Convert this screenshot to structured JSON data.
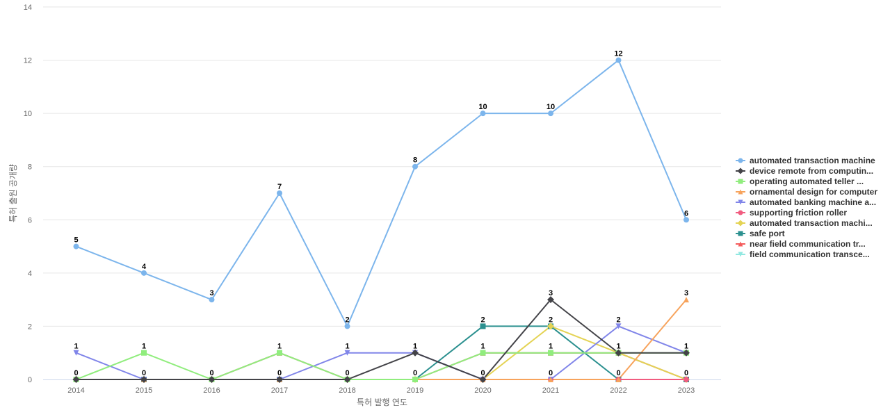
{
  "chart_data": {
    "type": "line",
    "title": "",
    "xlabel": "특허 발행 연도",
    "ylabel": "특허 출원 공개량",
    "ylim": [
      0,
      14
    ],
    "y_ticks": [
      "0",
      "2",
      "4",
      "6",
      "8",
      "10",
      "12",
      "14"
    ],
    "grid": true,
    "legend_position": "right",
    "x": [
      "2014",
      "2015",
      "2016",
      "2017",
      "2018",
      "2019",
      "2020",
      "2021",
      "2022",
      "2023"
    ],
    "series": [
      {
        "name": "automated transaction machine",
        "color": "#7cb5ec",
        "marker": "circle",
        "values": [
          5,
          4,
          3,
          7,
          2,
          8,
          10,
          10,
          12,
          6
        ]
      },
      {
        "name": "device remote from computin...",
        "color": "#434348",
        "marker": "diamond",
        "values": [
          0,
          0,
          0,
          0,
          0,
          1,
          0,
          3,
          1,
          1
        ]
      },
      {
        "name": "operating automated teller ...",
        "color": "#90ed7d",
        "marker": "square",
        "values": [
          0,
          1,
          0,
          1,
          0,
          0,
          1,
          1,
          1,
          1
        ]
      },
      {
        "name": "ornamental design for computer",
        "color": "#f7a35c",
        "marker": "triangle",
        "values": [
          0,
          0,
          0,
          0,
          0,
          0,
          0,
          0,
          0,
          3
        ]
      },
      {
        "name": "automated banking machine a...",
        "color": "#8085e9",
        "marker": "triangle-down",
        "values": [
          1,
          0,
          0,
          0,
          1,
          1,
          0,
          0,
          2,
          1
        ]
      },
      {
        "name": "supporting friction roller",
        "color": "#f15c80",
        "marker": "circle",
        "values": [
          0,
          0,
          0,
          0,
          0,
          0,
          0,
          0,
          0,
          0
        ]
      },
      {
        "name": "automated transaction machi...",
        "color": "#e4d354",
        "marker": "diamond",
        "values": [
          0,
          0,
          0,
          0,
          0,
          0,
          0,
          2,
          1,
          0
        ]
      },
      {
        "name": "safe port",
        "color": "#2b908f",
        "marker": "square",
        "values": [
          0,
          0,
          0,
          0,
          0,
          0,
          2,
          2,
          0,
          0
        ]
      },
      {
        "name": "near field communication tr...",
        "color": "#f45b5b",
        "marker": "triangle",
        "values": [
          0,
          0,
          0,
          1,
          0,
          0,
          1,
          1,
          1,
          0
        ]
      },
      {
        "name": "field communication transce...",
        "color": "#91e8e1",
        "marker": "triangle-down",
        "values": [
          0,
          0,
          0,
          1,
          0,
          0,
          1,
          1,
          1,
          0
        ]
      }
    ],
    "data_labels": [
      {
        "x": "2014",
        "above": "5",
        "mid": "1",
        "bottom": "0"
      },
      {
        "x": "2015",
        "above": "4",
        "mid": "1",
        "bottom": "0"
      },
      {
        "x": "2016",
        "above": "3",
        "mid": "",
        "bottom": "0"
      },
      {
        "x": "2017",
        "above": "7",
        "mid": "1",
        "bottom": "0"
      },
      {
        "x": "2018",
        "above": "2",
        "mid": "1",
        "bottom": "0"
      },
      {
        "x": "2019",
        "above": "8",
        "mid": "1",
        "bottom": "0"
      },
      {
        "x": "2020",
        "above": "10",
        "mid": "2",
        "low": "1",
        "bottom": "0"
      },
      {
        "x": "2021",
        "above": "10",
        "mid": "3",
        "low2": "2",
        "low": "1",
        "bottom": "0"
      },
      {
        "x": "2022",
        "above": "12",
        "mid": "2",
        "low": "1",
        "bottom": "0"
      },
      {
        "x": "2023",
        "above": "6",
        "mid": "3",
        "low": "1",
        "bottom": "0"
      }
    ]
  }
}
